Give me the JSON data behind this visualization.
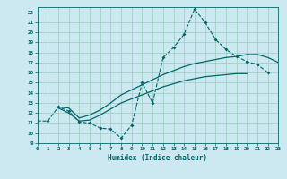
{
  "bg_color": "#cce8f0",
  "line_color": "#006666",
  "grid_color": "#99ccbb",
  "xlabel": "Humidex (Indice chaleur)",
  "xlim": [
    0,
    23
  ],
  "ylim": [
    9,
    22.5
  ],
  "xticks": [
    0,
    1,
    2,
    3,
    4,
    5,
    6,
    7,
    8,
    9,
    10,
    11,
    12,
    13,
    14,
    15,
    16,
    17,
    18,
    19,
    20,
    21,
    22,
    23
  ],
  "yticks": [
    9,
    10,
    11,
    12,
    13,
    14,
    15,
    16,
    17,
    18,
    19,
    20,
    21,
    22
  ],
  "zigzag_x": [
    0,
    1,
    2,
    3,
    4,
    5,
    6,
    7,
    8,
    9,
    10,
    11,
    12,
    13,
    14,
    15,
    16,
    17,
    18,
    19,
    20,
    21,
    22
  ],
  "zigzag_y": [
    11.2,
    11.2,
    12.6,
    12.2,
    11.1,
    11.0,
    10.5,
    10.4,
    9.5,
    10.8,
    15.0,
    13.0,
    17.5,
    18.5,
    19.8,
    22.3,
    21.0,
    19.3,
    18.3,
    17.6,
    17.1,
    16.8,
    16.0
  ],
  "upper_x": [
    2,
    3,
    4,
    5,
    6,
    7,
    8,
    9,
    10,
    11,
    12,
    13,
    14,
    15,
    16,
    17,
    18,
    19,
    20,
    21,
    22,
    23
  ],
  "upper_y": [
    12.6,
    12.5,
    11.5,
    11.8,
    12.3,
    13.0,
    13.8,
    14.3,
    14.8,
    15.3,
    15.8,
    16.2,
    16.6,
    16.9,
    17.1,
    17.3,
    17.5,
    17.6,
    17.8,
    17.8,
    17.5,
    17.0
  ],
  "lower_x": [
    2,
    3,
    4,
    5,
    6,
    7,
    8,
    9,
    10,
    11,
    12,
    13,
    14,
    15,
    16,
    17,
    18,
    19,
    20,
    21,
    22,
    23
  ],
  "lower_y": [
    12.5,
    12.0,
    11.2,
    11.3,
    11.8,
    12.4,
    13.0,
    13.4,
    13.8,
    14.2,
    14.6,
    14.9,
    15.2,
    15.4,
    15.6,
    15.7,
    15.8,
    15.9,
    15.9,
    null,
    null,
    null
  ]
}
